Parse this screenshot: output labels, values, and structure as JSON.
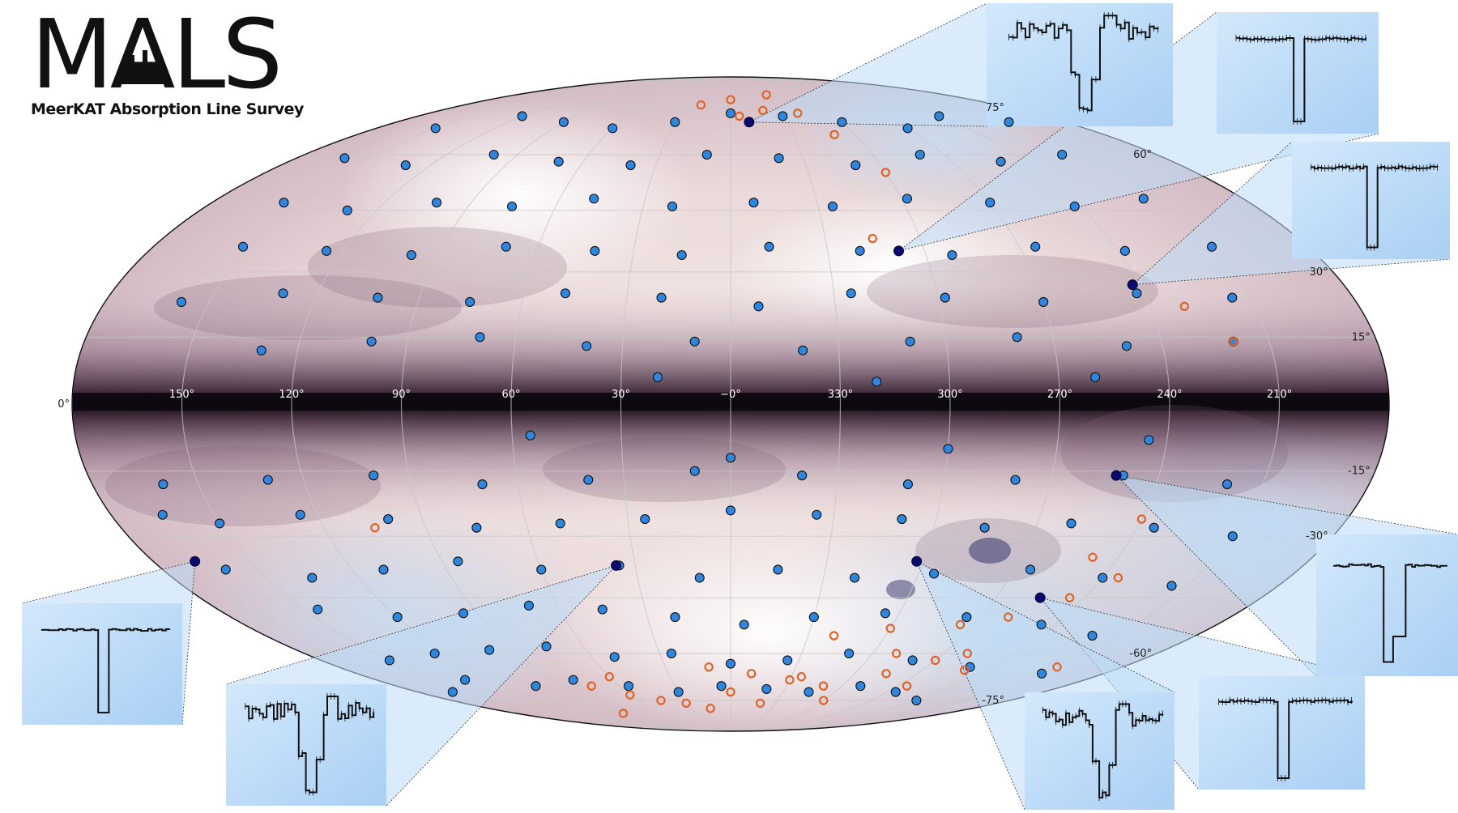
{
  "logo": {
    "title": "MALS",
    "subtitle": "MeerKAT Absorption Line Survey"
  },
  "colors": {
    "detection_fill": "#2f86de",
    "highlight_fill": "#0a0a6e",
    "non_detection_stroke": "#e0642a",
    "inset_bg": "#bcdcf8",
    "galactic_plane": "#0d0810",
    "dust_mid": "#7a5a72"
  },
  "chart_data": {
    "type": "scatter",
    "projection": "mollweide",
    "coordinates": "galactic",
    "lon_tick_labels": [
      "150°",
      "120°",
      "90°",
      "60°",
      "30°",
      "−0°",
      "330°",
      "300°",
      "270°",
      "240°",
      "210°"
    ],
    "lon_ticks": [
      150,
      120,
      90,
      60,
      30,
      0,
      330,
      300,
      270,
      240,
      210
    ],
    "lat_tick_labels": [
      "75°",
      "60°",
      "30°",
      "15°",
      "0°",
      "-15°",
      "-30°",
      "-60°",
      "-75°"
    ],
    "lat_ticks": [
      75,
      60,
      30,
      15,
      0,
      -15,
      -30,
      -60,
      -75
    ],
    "series": [
      {
        "kind": "detection",
        "points": [
          [
            -120,
            -75
          ],
          [
            -95,
            -72
          ],
          [
            -70,
            -70
          ],
          [
            -45,
            -72
          ],
          [
            -20,
            -71
          ],
          [
            5,
            -70
          ],
          [
            30,
            -72
          ],
          [
            55,
            -70
          ],
          [
            80,
            -68
          ],
          [
            105,
            -70
          ],
          [
            135,
            -68
          ],
          [
            160,
            -72
          ],
          [
            -150,
            -66
          ],
          [
            -110,
            -64
          ],
          [
            -80,
            -62
          ],
          [
            -50,
            -60
          ],
          [
            -25,
            -62
          ],
          [
            0,
            -63
          ],
          [
            25,
            -60
          ],
          [
            50,
            -61
          ],
          [
            75,
            -58
          ],
          [
            100,
            -59
          ],
          [
            125,
            -60
          ],
          [
            150,
            -62
          ],
          [
            -140,
            -55
          ],
          [
            -115,
            -52
          ],
          [
            -85,
            -50
          ],
          [
            -55,
            -49
          ],
          [
            -30,
            -50
          ],
          [
            -5,
            -52
          ],
          [
            20,
            -50
          ],
          [
            45,
            -48
          ],
          [
            70,
            -47
          ],
          [
            95,
            -49
          ],
          [
            120,
            -50
          ],
          [
            145,
            -48
          ],
          [
            -145,
            -42
          ],
          [
            -120,
            -40
          ],
          [
            -95,
            -38
          ],
          [
            -65,
            -39
          ],
          [
            -40,
            -40
          ],
          [
            -15,
            -38
          ],
          [
            10,
            -40
          ],
          [
            35,
            -37
          ],
          [
            60,
            -38
          ],
          [
            85,
            -36
          ],
          [
            110,
            -38
          ],
          [
            135,
            -40
          ],
          [
            160,
            -38
          ],
          [
            -150,
            -30
          ],
          [
            -125,
            -28
          ],
          [
            -100,
            -27
          ],
          [
            -75,
            -28
          ],
          [
            -50,
            -26
          ],
          [
            -25,
            -25
          ],
          [
            0,
            -24
          ],
          [
            25,
            -26
          ],
          [
            50,
            -27
          ],
          [
            75,
            -28
          ],
          [
            100,
            -26
          ],
          [
            125,
            -25
          ],
          [
            150,
            -27
          ],
          [
            -140,
            -18
          ],
          [
            -110,
            -16
          ],
          [
            -80,
            -17
          ],
          [
            -50,
            -18
          ],
          [
            -20,
            -16
          ],
          [
            10,
            -15
          ],
          [
            40,
            -17
          ],
          [
            70,
            -18
          ],
          [
            100,
            -16
          ],
          [
            130,
            -17
          ],
          [
            160,
            -18
          ],
          [
            -115,
            -8
          ],
          [
            -60,
            -10
          ],
          [
            0,
            -12
          ],
          [
            55,
            -7
          ],
          [
            165,
            -25
          ],
          [
            -150,
            70
          ],
          [
            -120,
            72
          ],
          [
            -90,
            68
          ],
          [
            -60,
            70
          ],
          [
            -30,
            72
          ],
          [
            0,
            73
          ],
          [
            30,
            70
          ],
          [
            60,
            68
          ],
          [
            90,
            70
          ],
          [
            120,
            72
          ],
          [
            150,
            68
          ],
          [
            -140,
            60
          ],
          [
            -110,
            58
          ],
          [
            -80,
            60
          ],
          [
            -50,
            57
          ],
          [
            -20,
            59
          ],
          [
            10,
            60
          ],
          [
            40,
            57
          ],
          [
            70,
            58
          ],
          [
            100,
            60
          ],
          [
            130,
            57
          ],
          [
            160,
            59
          ],
          [
            -145,
            48
          ],
          [
            -118,
            46
          ],
          [
            -90,
            47
          ],
          [
            -62,
            48
          ],
          [
            -35,
            46
          ],
          [
            -8,
            47
          ],
          [
            20,
            46
          ],
          [
            48,
            48
          ],
          [
            75,
            46
          ],
          [
            102,
            47
          ],
          [
            130,
            45
          ],
          [
            155,
            47
          ],
          [
            -150,
            36
          ],
          [
            -122,
            35
          ],
          [
            -95,
            36
          ],
          [
            -68,
            34
          ],
          [
            -40,
            35
          ],
          [
            -12,
            36
          ],
          [
            15,
            34
          ],
          [
            42,
            35
          ],
          [
            70,
            36
          ],
          [
            98,
            34
          ],
          [
            125,
            35
          ],
          [
            152,
            36
          ],
          [
            -145,
            24
          ],
          [
            -118,
            25
          ],
          [
            -90,
            23
          ],
          [
            -62,
            24
          ],
          [
            -35,
            25
          ],
          [
            -8,
            22
          ],
          [
            20,
            24
          ],
          [
            48,
            25
          ],
          [
            75,
            23
          ],
          [
            102,
            24
          ],
          [
            130,
            25
          ],
          [
            158,
            23
          ],
          [
            -140,
            14
          ],
          [
            -110,
            13
          ],
          [
            -80,
            15
          ],
          [
            -50,
            14
          ],
          [
            -20,
            12
          ],
          [
            10,
            14
          ],
          [
            40,
            13
          ],
          [
            70,
            15
          ],
          [
            100,
            14
          ],
          [
            130,
            12
          ],
          [
            -100,
            6
          ],
          [
            -40,
            5
          ],
          [
            20,
            6
          ]
        ]
      },
      {
        "kind": "highlighted_detection",
        "points": [
          [
            -10,
            70
          ],
          [
            -52,
            35
          ],
          [
            -118,
            27
          ],
          [
            -108,
            -16
          ],
          [
            -105,
            -45
          ],
          [
            -58,
            -36
          ],
          [
            36,
            -37
          ],
          [
            167,
            -36
          ]
        ]
      },
      {
        "kind": "non_detection",
        "points": [
          [
            -30,
            80
          ],
          [
            0,
            78
          ],
          [
            20,
            76
          ],
          [
            -5,
            72
          ],
          [
            -20,
            74
          ],
          [
            -40,
            73
          ],
          [
            -50,
            66
          ],
          [
            -60,
            55
          ],
          [
            -45,
            38
          ],
          [
            -130,
            22
          ],
          [
            -140,
            14
          ],
          [
            -120,
            -26
          ],
          [
            -115,
            -45
          ],
          [
            -100,
            -50
          ],
          [
            -85,
            -52
          ],
          [
            -60,
            -53
          ],
          [
            -40,
            -55
          ],
          [
            -70,
            -60
          ],
          [
            -90,
            -62
          ],
          [
            -75,
            -66
          ],
          [
            -50,
            -70
          ],
          [
            -30,
            -68
          ],
          [
            -10,
            -66
          ],
          [
            10,
            -64
          ],
          [
            0,
            -72
          ],
          [
            -20,
            -76
          ],
          [
            15,
            -78
          ],
          [
            30,
            -76
          ],
          [
            45,
            -75
          ],
          [
            60,
            -73
          ],
          [
            75,
            -70
          ],
          [
            105,
            -28
          ],
          [
            -35,
            -67
          ],
          [
            -60,
            -75
          ],
          [
            -95,
            -70
          ],
          [
            -100,
            -60
          ],
          [
            -112,
            -35
          ],
          [
            -125,
            -40
          ],
          [
            -110,
            -65
          ],
          [
            60,
            -67
          ],
          [
            90,
            -80
          ],
          [
            -150,
            -64
          ]
        ]
      }
    ],
    "insets": [
      {
        "anchor_lon": -10,
        "anchor_lat": 70,
        "profile": "noisy_double"
      },
      {
        "anchor_lon": -52,
        "anchor_lat": 35,
        "profile": "clean_deep"
      },
      {
        "anchor_lon": -118,
        "anchor_lat": 27,
        "profile": "clean_deep"
      },
      {
        "anchor_lon": -108,
        "anchor_lat": -16,
        "profile": "clean_deep_shoulder"
      },
      {
        "anchor_lon": -105,
        "anchor_lat": -45,
        "profile": "clean_deep"
      },
      {
        "anchor_lon": -58,
        "anchor_lat": -36,
        "profile": "noisy_double"
      },
      {
        "anchor_lon": 36,
        "anchor_lat": -37,
        "profile": "noisy_double"
      },
      {
        "anchor_lon": 167,
        "anchor_lat": -36,
        "profile": "clean_deep"
      }
    ]
  }
}
